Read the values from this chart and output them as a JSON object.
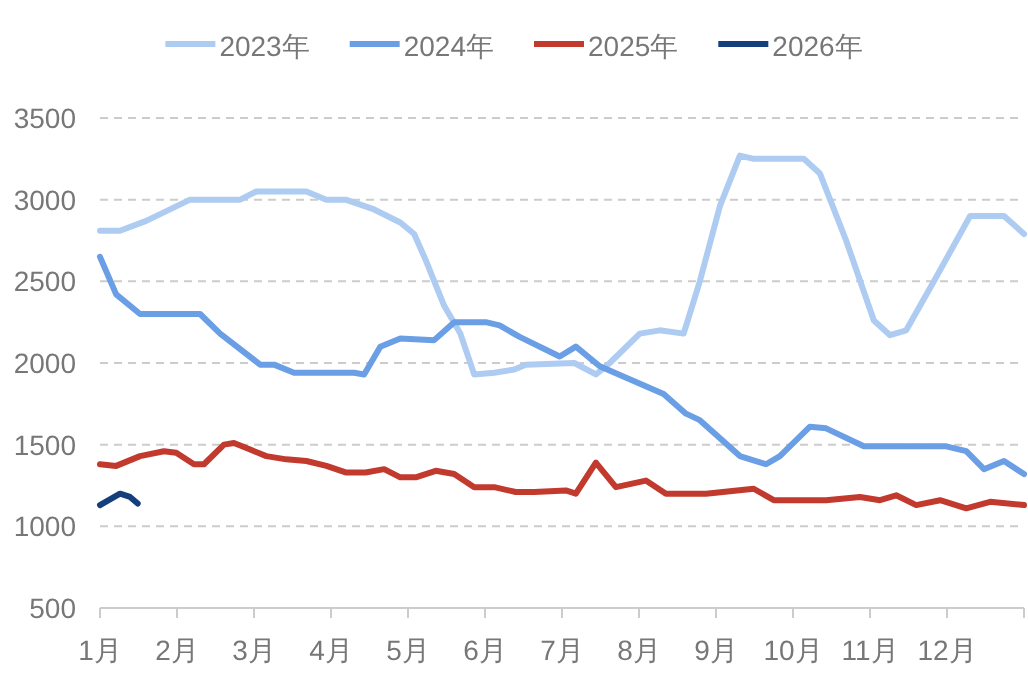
{
  "chart_data": {
    "type": "line",
    "legend": "top",
    "grid": "y",
    "line_style": "solid",
    "marker": "none",
    "xlim": [
      1,
      13
    ],
    "ylim": [
      500,
      3500
    ],
    "xticks": [
      {
        "value": 1,
        "label": "1月"
      },
      {
        "value": 2,
        "label": "2月"
      },
      {
        "value": 3,
        "label": "3月"
      },
      {
        "value": 4,
        "label": "4月"
      },
      {
        "value": 5,
        "label": "5月"
      },
      {
        "value": 6,
        "label": "6月"
      },
      {
        "value": 7,
        "label": "7月"
      },
      {
        "value": 8,
        "label": "8月"
      },
      {
        "value": 9,
        "label": "9月"
      },
      {
        "value": 10,
        "label": "10月"
      },
      {
        "value": 11,
        "label": "11月"
      },
      {
        "value": 12,
        "label": "12月"
      },
      {
        "value": 13,
        "label": null
      }
    ],
    "yticks": [
      500,
      1000,
      1500,
      2000,
      2500,
      3000,
      3500
    ],
    "series": [
      {
        "name": "2023年",
        "color": "#aecbf2",
        "x": [
          1,
          1.26,
          1.6,
          2.17,
          2.82,
          3.03,
          3.68,
          3.94,
          4.19,
          4.56,
          4.9,
          5.08,
          5.23,
          5.47,
          5.68,
          5.86,
          6.12,
          6.38,
          6.53,
          7.16,
          7.44,
          7.62,
          8.01,
          8.27,
          8.58,
          8.79,
          9.05,
          9.31,
          9.49,
          10.14,
          10.35,
          10.69,
          11.05,
          11.26,
          11.47,
          11.83,
          12.3,
          12.74,
          13
        ],
        "values": [
          2810,
          2810,
          2870,
          3000,
          3000,
          3050,
          3050,
          3000,
          3000,
          2940,
          2860,
          2790,
          2630,
          2350,
          2180,
          1930,
          1940,
          1960,
          1990,
          2000,
          1930,
          2000,
          2180,
          2200,
          2180,
          2500,
          2960,
          3270,
          3250,
          3250,
          3160,
          2750,
          2260,
          2170,
          2200,
          2500,
          2900,
          2900,
          2790
        ]
      },
      {
        "name": "2024年",
        "color": "#6a9fe6",
        "x": [
          1,
          1.21,
          1.52,
          2.3,
          2.56,
          3.08,
          3.26,
          3.52,
          4.3,
          4.43,
          4.64,
          4.9,
          5.34,
          5.6,
          6.01,
          6.19,
          6.45,
          6.97,
          7.18,
          7.49,
          8.32,
          8.61,
          8.79,
          9.31,
          9.65,
          9.83,
          10.22,
          10.43,
          10.92,
          11.99,
          12.25,
          12.48,
          12.74,
          13
        ],
        "values": [
          2650,
          2420,
          2300,
          2300,
          2180,
          1990,
          1990,
          1940,
          1940,
          1930,
          2100,
          2150,
          2140,
          2250,
          2250,
          2230,
          2160,
          2040,
          2100,
          1980,
          1810,
          1690,
          1650,
          1430,
          1380,
          1430,
          1610,
          1600,
          1490,
          1490,
          1460,
          1350,
          1400,
          1320
        ]
      },
      {
        "name": "2025年",
        "color": "#c23a2e",
        "x": [
          1,
          1.21,
          1.52,
          1.83,
          1.99,
          2.22,
          2.35,
          2.61,
          2.74,
          2.95,
          3.16,
          3.42,
          3.68,
          3.94,
          4.19,
          4.45,
          4.69,
          4.9,
          5.1,
          5.36,
          5.6,
          5.86,
          6.12,
          6.4,
          6.64,
          7.05,
          7.18,
          7.44,
          7.7,
          8.09,
          8.35,
          8.87,
          9.49,
          9.75,
          10.43,
          10.87,
          11.13,
          11.34,
          11.6,
          11.91,
          12.25,
          12.56,
          13
        ],
        "values": [
          1380,
          1370,
          1430,
          1460,
          1450,
          1380,
          1380,
          1500,
          1510,
          1470,
          1430,
          1410,
          1400,
          1370,
          1330,
          1330,
          1350,
          1300,
          1300,
          1340,
          1320,
          1240,
          1240,
          1210,
          1210,
          1220,
          1200,
          1390,
          1240,
          1280,
          1200,
          1200,
          1230,
          1160,
          1160,
          1180,
          1160,
          1190,
          1130,
          1160,
          1110,
          1150,
          1130
        ]
      },
      {
        "name": "2026年",
        "color": "#143f7c",
        "x": [
          1,
          1.26,
          1.39,
          1.49
        ],
        "values": [
          1130,
          1200,
          1180,
          1140
        ]
      }
    ]
  }
}
